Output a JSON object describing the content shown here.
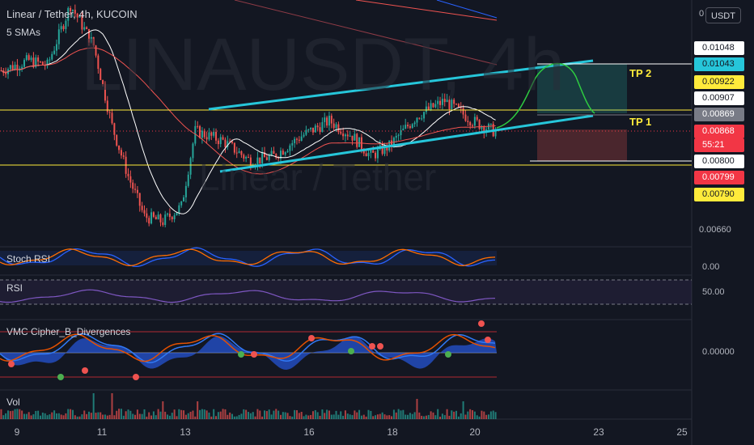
{
  "header": {
    "title": "Linear / Tether, 4h, KUCOIN",
    "indicators_label": "5 SMAs",
    "unit_button": "USDT"
  },
  "watermark": {
    "symbol": "LINAUSDT, 4h",
    "name": "Linear / Tether"
  },
  "price_labels": {
    "axis_top": "0",
    "p1": "0.01048",
    "p2": "0.01043",
    "p3": "0.00922",
    "p4": "0.00907",
    "p5": "0.00869",
    "p6": "0.00868",
    "countdown": "55:21",
    "p7": "0.00800",
    "p8": "0.00799",
    "p9": "0.00790",
    "p10": "0.00660"
  },
  "targets": {
    "tp2": "TP 2",
    "tp1": "TP 1"
  },
  "panels": {
    "stoch_rsi": {
      "title": "Stoch RSI",
      "axis_value": "0.00"
    },
    "rsi": {
      "title": "RSI",
      "axis_value": "50.00"
    },
    "vmc": {
      "title": "VMC Cipher_B_Divergences",
      "axis_value": "0.00000"
    },
    "vol": {
      "title": "Vol"
    }
  },
  "x_axis": {
    "ticks": [
      "9",
      "11",
      "13",
      "16",
      "18",
      "20",
      "23",
      "25"
    ]
  },
  "colors": {
    "up": "#26a69a",
    "down": "#ef5350",
    "channel": "#26c6da",
    "level": "#ffeb3b",
    "yellow_tag": "#ffeb3b",
    "red_tag": "#f23645",
    "grey_tag": "#787b86"
  },
  "chart_data": {
    "type": "candlestick",
    "title": "Linear / Tether, 4h, KUCOIN",
    "y_axis_ticks": [
      0.01048,
      0.01043,
      0.00922,
      0.00907,
      0.00869,
      0.00868,
      0.008,
      0.00799,
      0.0079,
      0.0066
    ],
    "ylim": [
      0.0064,
      0.0113
    ],
    "x_tick_labels": [
      "9",
      "11",
      "13",
      "16",
      "18",
      "20",
      "23",
      "25"
    ],
    "horizontal_levels": [
      0.00869,
      0.008
    ],
    "target_levels": {
      "TP 2": 0.01048,
      "TP 1": 0.00869
    },
    "last_price": 0.00868,
    "legend": "top-left"
  }
}
